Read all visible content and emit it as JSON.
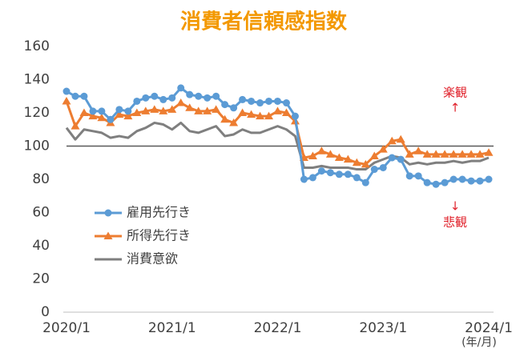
{
  "chart_data": {
    "type": "line",
    "title": "消費者信頼感指数",
    "categories": [
      "2020/1",
      null,
      null,
      null,
      null,
      null,
      null,
      null,
      null,
      null,
      null,
      null,
      "2021/1",
      null,
      null,
      null,
      null,
      null,
      null,
      null,
      null,
      null,
      null,
      null,
      "2022/1",
      null,
      null,
      null,
      null,
      null,
      null,
      null,
      null,
      null,
      null,
      null,
      "2023/1",
      null,
      null,
      null,
      null,
      null,
      null,
      null,
      null,
      null,
      null,
      null,
      "2024/1"
    ],
    "series": [
      {
        "name": "雇用先行き",
        "color": "#5b9bd5",
        "marker": "circle",
        "values": [
          133,
          130,
          130,
          121,
          121,
          116,
          122,
          121,
          127,
          129,
          130,
          128,
          129,
          135,
          131,
          130,
          129,
          130,
          125,
          123,
          128,
          127,
          126,
          127,
          127,
          126,
          118,
          80,
          81,
          85,
          84,
          83,
          83,
          81,
          78,
          86,
          87,
          93,
          92,
          82,
          82,
          78,
          77,
          78,
          80,
          80,
          79,
          79,
          80
        ]
      },
      {
        "name": "所得先行き",
        "color": "#ed7d31",
        "marker": "triangle",
        "values": [
          127,
          112,
          120,
          118,
          117,
          114,
          119,
          118,
          120,
          121,
          122,
          121,
          122,
          126,
          123,
          121,
          121,
          122,
          116,
          114,
          120,
          119,
          118,
          118,
          121,
          120,
          115,
          93,
          94,
          97,
          95,
          93,
          92,
          90,
          89,
          94,
          98,
          103,
          104,
          95,
          97,
          95,
          95,
          95,
          95,
          95,
          95,
          95,
          96
        ]
      },
      {
        "name": "消費意欲",
        "color": "#7f7f7f",
        "marker": "none",
        "values": [
          111,
          104,
          110,
          109,
          108,
          105,
          106,
          105,
          109,
          111,
          114,
          113,
          110,
          114,
          109,
          108,
          110,
          112,
          106,
          107,
          110,
          108,
          108,
          110,
          112,
          110,
          106,
          87,
          87,
          88,
          87,
          87,
          87,
          86,
          86,
          90,
          92,
          94,
          93,
          89,
          90,
          89,
          90,
          90,
          91,
          90,
          91,
          91,
          93
        ]
      }
    ],
    "reference_line": 100,
    "ylim": [
      0,
      160
    ],
    "yticks": [
      0,
      20,
      40,
      60,
      80,
      100,
      120,
      140,
      160
    ],
    "annotations": [
      "楽観",
      "↑",
      "↓",
      "悲観"
    ],
    "x_unit": "(年/月)",
    "legend": "left"
  }
}
